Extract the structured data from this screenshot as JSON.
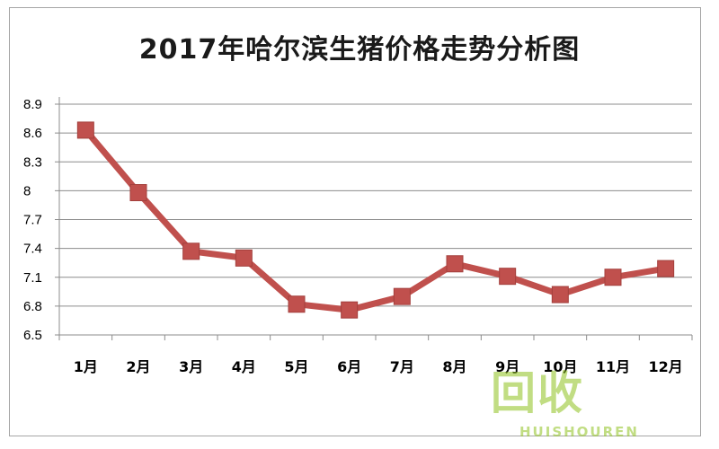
{
  "chart_data": {
    "type": "line",
    "title": "2017年哈尔滨生猪价格走势分析图",
    "categories": [
      "1月",
      "2月",
      "3月",
      "4月",
      "5月",
      "6月",
      "7月",
      "8月",
      "9月",
      "10月",
      "11月",
      "12月"
    ],
    "series": [
      {
        "values": [
          8.63,
          7.98,
          7.37,
          7.3,
          6.82,
          6.76,
          6.9,
          7.24,
          7.11,
          6.92,
          7.1,
          7.19
        ]
      }
    ],
    "yticks": [
      "6.5",
      "6.8",
      "7.1",
      "7.4",
      "7.7",
      "8",
      "8.3",
      "8.6",
      "8.9"
    ],
    "ylim": [
      6.5,
      8.9
    ],
    "xlabel": "",
    "ylabel": "",
    "grid": true,
    "legend": "none",
    "line_color": "#c0504d",
    "marker": "square"
  },
  "watermark": {
    "cn": "回收",
    "en": "HUISHOUREN"
  }
}
